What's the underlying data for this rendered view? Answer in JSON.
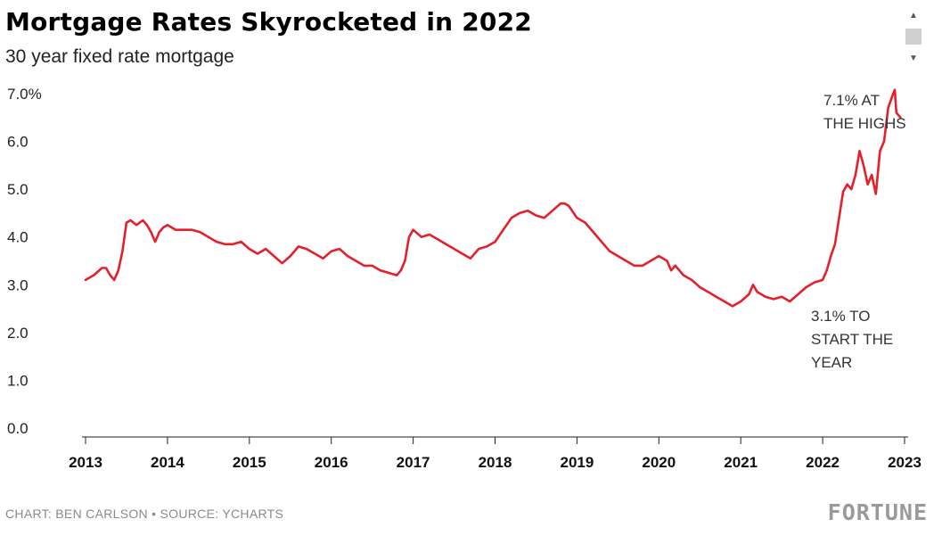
{
  "title": "Mortgage Rates Skyrocketed in 2022",
  "subtitle": "30 year fixed rate mortgage",
  "credit": "CHART: BEN CARLSON • SOURCE: YCHARTS",
  "brand": "FORTUNE",
  "icons": {
    "scroll_up": "triangle-up-icon",
    "scroll_down": "triangle-down-icon"
  },
  "chart_data": {
    "type": "line",
    "line_color": "#e3202b",
    "ylim": [
      0,
      7
    ],
    "xlim": [
      2013,
      2023
    ],
    "y_ticks": [
      {
        "value": 0,
        "label": "0.0"
      },
      {
        "value": 1,
        "label": "1.0"
      },
      {
        "value": 2,
        "label": "2.0"
      },
      {
        "value": 3,
        "label": "3.0"
      },
      {
        "value": 4,
        "label": "4.0"
      },
      {
        "value": 5,
        "label": "5.0"
      },
      {
        "value": 6,
        "label": "6.0"
      },
      {
        "value": 7,
        "label": "7.0%"
      }
    ],
    "x_ticks": [
      {
        "value": 2013,
        "label": "2013"
      },
      {
        "value": 2014,
        "label": "2014"
      },
      {
        "value": 2015,
        "label": "2015"
      },
      {
        "value": 2016,
        "label": "2016"
      },
      {
        "value": 2017,
        "label": "2017"
      },
      {
        "value": 2018,
        "label": "2018"
      },
      {
        "value": 2019,
        "label": "2019"
      },
      {
        "value": 2020,
        "label": "2020"
      },
      {
        "value": 2021,
        "label": "2021"
      },
      {
        "value": 2022,
        "label": "2022"
      },
      {
        "value": 2023,
        "label": "2023"
      }
    ],
    "series": [
      {
        "x": [
          2013.0,
          2013.1,
          2013.2,
          2013.25,
          2013.3,
          2013.35,
          2013.4,
          2013.45,
          2013.5,
          2013.55,
          2013.62,
          2013.7,
          2013.75,
          2013.8,
          2013.85,
          2013.9,
          2013.95,
          2014.0,
          2014.1,
          2014.2,
          2014.3,
          2014.4,
          2014.5,
          2014.6,
          2014.7,
          2014.8,
          2014.9,
          2015.0,
          2015.1,
          2015.2,
          2015.3,
          2015.4,
          2015.5,
          2015.6,
          2015.7,
          2015.8,
          2015.9,
          2016.0,
          2016.1,
          2016.2,
          2016.3,
          2016.4,
          2016.5,
          2016.6,
          2016.7,
          2016.8,
          2016.85,
          2016.9,
          2016.95,
          2017.0,
          2017.1,
          2017.2,
          2017.3,
          2017.4,
          2017.5,
          2017.6,
          2017.7,
          2017.8,
          2017.9,
          2018.0,
          2018.1,
          2018.2,
          2018.3,
          2018.4,
          2018.5,
          2018.6,
          2018.7,
          2018.8,
          2018.85,
          2018.9,
          2019.0,
          2019.1,
          2019.2,
          2019.3,
          2019.4,
          2019.5,
          2019.6,
          2019.7,
          2019.8,
          2019.9,
          2020.0,
          2020.1,
          2020.15,
          2020.2,
          2020.25,
          2020.3,
          2020.4,
          2020.5,
          2020.6,
          2020.7,
          2020.8,
          2020.9,
          2021.0,
          2021.1,
          2021.15,
          2021.2,
          2021.25,
          2021.3,
          2021.4,
          2021.5,
          2021.6,
          2021.7,
          2021.8,
          2021.9,
          2022.0,
          2022.05,
          2022.1,
          2022.15,
          2022.2,
          2022.25,
          2022.3,
          2022.35,
          2022.4,
          2022.45,
          2022.5,
          2022.55,
          2022.6,
          2022.65,
          2022.7,
          2022.75,
          2022.8,
          2022.85,
          2022.88,
          2022.9,
          2022.95
        ],
        "y": [
          3.1,
          3.2,
          3.35,
          3.35,
          3.2,
          3.1,
          3.3,
          3.7,
          4.3,
          4.35,
          4.25,
          4.35,
          4.25,
          4.1,
          3.9,
          4.1,
          4.2,
          4.25,
          4.15,
          4.15,
          4.15,
          4.1,
          4.0,
          3.9,
          3.85,
          3.85,
          3.9,
          3.75,
          3.65,
          3.75,
          3.6,
          3.45,
          3.6,
          3.8,
          3.75,
          3.65,
          3.55,
          3.7,
          3.75,
          3.6,
          3.5,
          3.4,
          3.4,
          3.3,
          3.25,
          3.2,
          3.3,
          3.5,
          4.0,
          4.15,
          4.0,
          4.05,
          3.95,
          3.85,
          3.75,
          3.65,
          3.55,
          3.75,
          3.8,
          3.9,
          4.15,
          4.4,
          4.5,
          4.55,
          4.45,
          4.4,
          4.55,
          4.7,
          4.7,
          4.65,
          4.4,
          4.3,
          4.1,
          3.9,
          3.7,
          3.6,
          3.5,
          3.4,
          3.4,
          3.5,
          3.6,
          3.5,
          3.3,
          3.4,
          3.3,
          3.2,
          3.1,
          2.95,
          2.85,
          2.75,
          2.65,
          2.55,
          2.65,
          2.8,
          3.0,
          2.85,
          2.8,
          2.75,
          2.7,
          2.75,
          2.65,
          2.8,
          2.95,
          3.05,
          3.1,
          3.3,
          3.6,
          3.85,
          4.4,
          4.95,
          5.1,
          5.0,
          5.3,
          5.8,
          5.5,
          5.1,
          5.3,
          4.9,
          5.8,
          6.0,
          6.7,
          6.95,
          7.08,
          6.6,
          6.5
        ]
      }
    ],
    "annotations": [
      {
        "lines": [
          "7.1% AT",
          "THE HIGHS"
        ]
      },
      {
        "lines": [
          "3.1% TO",
          "START THE",
          "YEAR"
        ]
      }
    ]
  }
}
